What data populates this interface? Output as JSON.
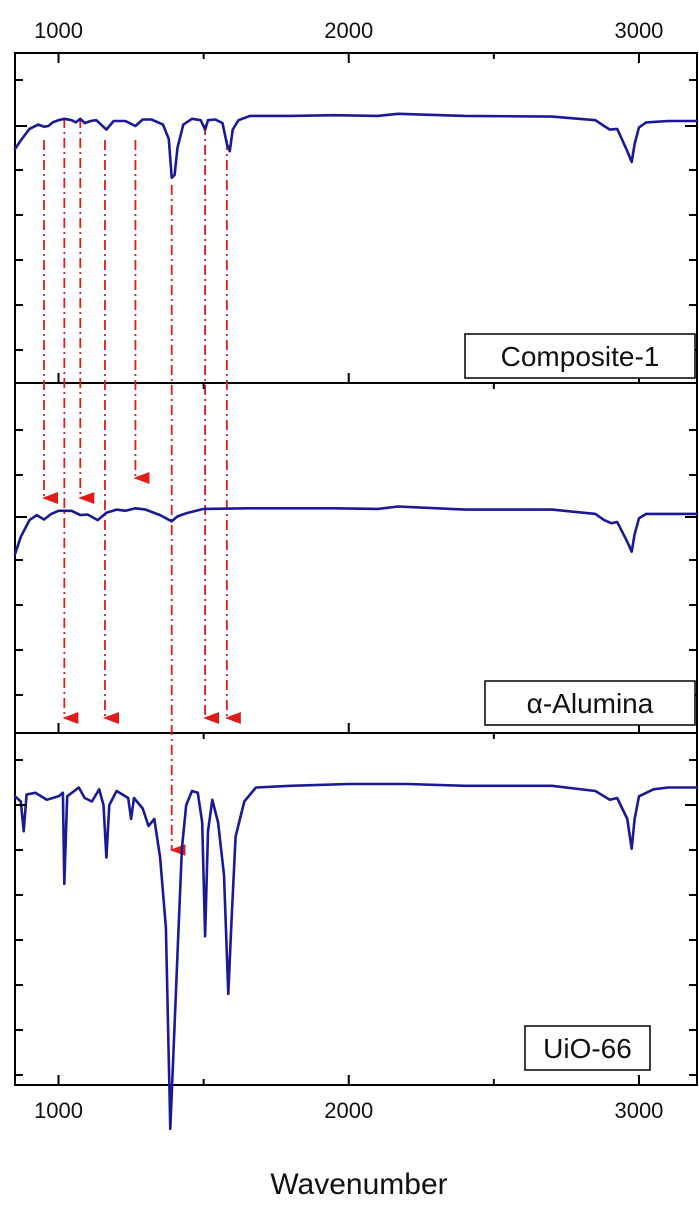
{
  "chart_data": {
    "type": "line",
    "xlabel": "Wavenumber",
    "xlim": [
      850,
      3200
    ],
    "xticks": [
      1000,
      2000,
      3000
    ],
    "xtick_labels": [
      "1000",
      "2000",
      "3000"
    ],
    "grid": false,
    "colors": {
      "line": "#1a1a96",
      "guide": "#e11a1a",
      "axis": "#000000"
    },
    "panels": [
      {
        "label": "Composite-1",
        "baseline": 0.1,
        "points": [
          [
            850,
            0.42
          ],
          [
            870,
            0.3
          ],
          [
            900,
            0.14
          ],
          [
            930,
            0.08
          ],
          [
            950,
            0.11
          ],
          [
            965,
            0.1
          ],
          [
            980,
            0.05
          ],
          [
            1000,
            0.02
          ],
          [
            1020,
            0.0
          ],
          [
            1045,
            0.02
          ],
          [
            1060,
            0.05
          ],
          [
            1075,
            0.0
          ],
          [
            1090,
            0.06
          ],
          [
            1110,
            0.03
          ],
          [
            1130,
            0.02
          ],
          [
            1165,
            0.15
          ],
          [
            1190,
            0.03
          ],
          [
            1230,
            0.03
          ],
          [
            1265,
            0.1
          ],
          [
            1290,
            0.01
          ],
          [
            1320,
            0.01
          ],
          [
            1360,
            0.08
          ],
          [
            1380,
            0.28
          ],
          [
            1390,
            0.82
          ],
          [
            1400,
            0.78
          ],
          [
            1410,
            0.4
          ],
          [
            1430,
            0.08
          ],
          [
            1460,
            0.0
          ],
          [
            1490,
            0.02
          ],
          [
            1505,
            0.15
          ],
          [
            1515,
            0.02
          ],
          [
            1540,
            0.01
          ],
          [
            1565,
            0.06
          ],
          [
            1580,
            0.35
          ],
          [
            1590,
            0.45
          ],
          [
            1600,
            0.15
          ],
          [
            1620,
            0.02
          ],
          [
            1660,
            -0.04
          ],
          [
            1800,
            -0.04
          ],
          [
            1950,
            -0.05
          ],
          [
            2100,
            -0.04
          ],
          [
            2170,
            -0.07
          ],
          [
            2400,
            -0.04
          ],
          [
            2700,
            -0.03
          ],
          [
            2850,
            0.02
          ],
          [
            2880,
            0.1
          ],
          [
            2900,
            0.15
          ],
          [
            2925,
            0.14
          ],
          [
            2960,
            0.45
          ],
          [
            2975,
            0.6
          ],
          [
            2985,
            0.35
          ],
          [
            3000,
            0.12
          ],
          [
            3025,
            0.05
          ],
          [
            3100,
            0.03
          ],
          [
            3200,
            0.03
          ]
        ],
        "arrows": [
          950,
          1020,
          1075,
          1160,
          1265,
          1390,
          1505,
          1580
        ]
      },
      {
        "label": "α-Alumina",
        "baseline": 0.1,
        "points": [
          [
            850,
            0.7
          ],
          [
            870,
            0.42
          ],
          [
            900,
            0.15
          ],
          [
            925,
            0.07
          ],
          [
            950,
            0.14
          ],
          [
            975,
            0.05
          ],
          [
            1000,
            0.0
          ],
          [
            1045,
            0.0
          ],
          [
            1075,
            0.07
          ],
          [
            1100,
            0.06
          ],
          [
            1135,
            0.15
          ],
          [
            1165,
            0.03
          ],
          [
            1200,
            -0.02
          ],
          [
            1230,
            0.0
          ],
          [
            1265,
            -0.04
          ],
          [
            1300,
            -0.02
          ],
          [
            1350,
            0.07
          ],
          [
            1390,
            0.17
          ],
          [
            1410,
            0.09
          ],
          [
            1440,
            0.04
          ],
          [
            1500,
            -0.03
          ],
          [
            1650,
            -0.04
          ],
          [
            1800,
            -0.04
          ],
          [
            1950,
            -0.04
          ],
          [
            2100,
            -0.03
          ],
          [
            2170,
            -0.07
          ],
          [
            2400,
            -0.02
          ],
          [
            2700,
            -0.02
          ],
          [
            2850,
            0.05
          ],
          [
            2880,
            0.15
          ],
          [
            2905,
            0.2
          ],
          [
            2925,
            0.18
          ],
          [
            2960,
            0.5
          ],
          [
            2975,
            0.66
          ],
          [
            2985,
            0.38
          ],
          [
            3000,
            0.12
          ],
          [
            3025,
            0.05
          ],
          [
            3100,
            0.05
          ],
          [
            3200,
            0.05
          ]
        ],
        "arrows": [
          1020,
          1160,
          1390,
          1505,
          1580
        ]
      },
      {
        "label": "UiO-66",
        "baseline": 0.1,
        "points": [
          [
            850,
            0.05
          ],
          [
            870,
            0.08
          ],
          [
            880,
            0.25
          ],
          [
            890,
            0.04
          ],
          [
            920,
            0.03
          ],
          [
            960,
            0.07
          ],
          [
            1000,
            0.05
          ],
          [
            1015,
            0.03
          ],
          [
            1020,
            0.55
          ],
          [
            1030,
            0.05
          ],
          [
            1070,
            0.0
          ],
          [
            1090,
            0.06
          ],
          [
            1115,
            0.08
          ],
          [
            1140,
            0.01
          ],
          [
            1155,
            0.1
          ],
          [
            1165,
            0.4
          ],
          [
            1175,
            0.1
          ],
          [
            1200,
            0.02
          ],
          [
            1240,
            0.06
          ],
          [
            1250,
            0.18
          ],
          [
            1260,
            0.06
          ],
          [
            1290,
            0.12
          ],
          [
            1310,
            0.22
          ],
          [
            1330,
            0.18
          ],
          [
            1350,
            0.4
          ],
          [
            1370,
            0.8
          ],
          [
            1385,
            1.95
          ],
          [
            1395,
            1.55
          ],
          [
            1410,
            0.95
          ],
          [
            1425,
            0.35
          ],
          [
            1440,
            0.1
          ],
          [
            1460,
            0.02
          ],
          [
            1480,
            0.03
          ],
          [
            1495,
            0.2
          ],
          [
            1505,
            0.85
          ],
          [
            1515,
            0.25
          ],
          [
            1530,
            0.07
          ],
          [
            1550,
            0.2
          ],
          [
            1570,
            0.5
          ],
          [
            1585,
            1.18
          ],
          [
            1595,
            0.8
          ],
          [
            1610,
            0.28
          ],
          [
            1640,
            0.08
          ],
          [
            1680,
            0.0
          ],
          [
            1800,
            -0.01
          ],
          [
            2000,
            -0.02
          ],
          [
            2200,
            -0.02
          ],
          [
            2400,
            -0.01
          ],
          [
            2700,
            -0.01
          ],
          [
            2850,
            0.02
          ],
          [
            2900,
            0.07
          ],
          [
            2925,
            0.06
          ],
          [
            2960,
            0.18
          ],
          [
            2975,
            0.35
          ],
          [
            2985,
            0.18
          ],
          [
            3000,
            0.05
          ],
          [
            3050,
            0.01
          ],
          [
            3100,
            0.0
          ],
          [
            3200,
            0.0
          ]
        ],
        "arrows": [
          1020,
          1160,
          1390,
          1505,
          1580
        ]
      }
    ]
  }
}
